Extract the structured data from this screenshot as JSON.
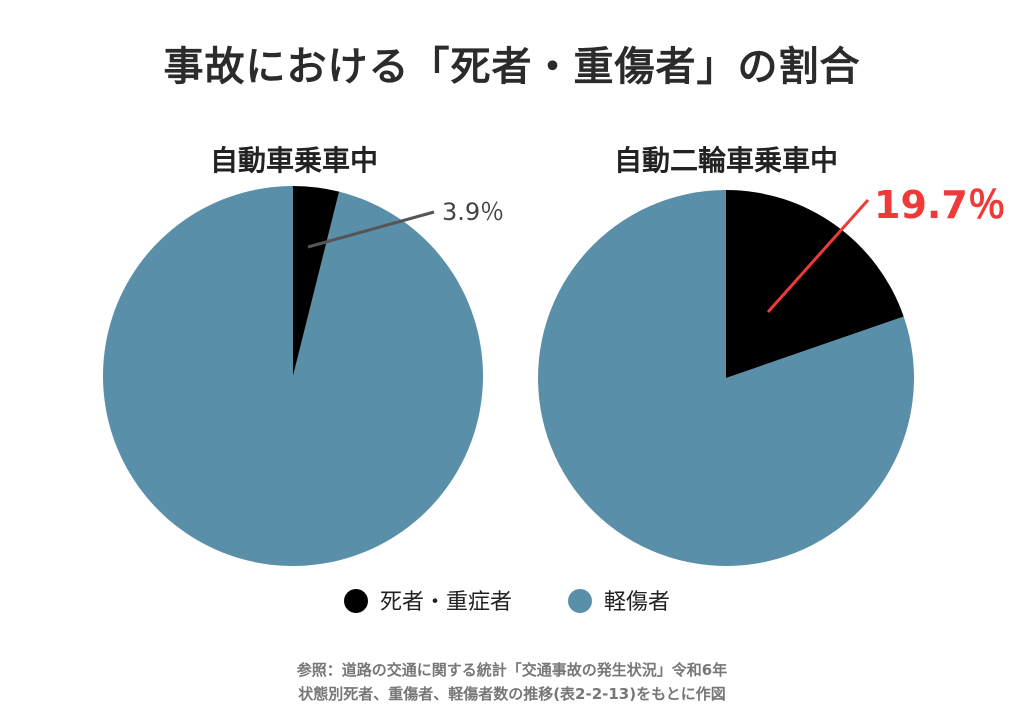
{
  "title": "事故における「死者・重傷者」の割合",
  "legend": [
    {
      "label": "死者・重症者",
      "color": "#000000"
    },
    {
      "label": "軽傷者",
      "color": "#5a8fa9"
    }
  ],
  "chart_data": [
    {
      "type": "pie",
      "title": "自動車乗車中",
      "slices": [
        {
          "label": "死者・重症者",
          "value": 3.9,
          "color": "#000000"
        },
        {
          "label": "軽傷者",
          "value": 96.1,
          "color": "#5a8fa9"
        }
      ],
      "annotation": "3.9％"
    },
    {
      "type": "pie",
      "title": "自動二輪車乗車中",
      "slices": [
        {
          "label": "死者・重症者",
          "value": 19.7,
          "color": "#000000"
        },
        {
          "label": "軽傷者",
          "value": 80.3,
          "color": "#5a8fa9"
        }
      ],
      "annotation": "19.7％"
    }
  ],
  "source": {
    "line1": "参照：道路の交通に関する統計「交通事故の発生状況」令和6年",
    "line2": "状態別死者、重傷者、軽傷者数の推移(表2-2-13)をもとに作図"
  }
}
